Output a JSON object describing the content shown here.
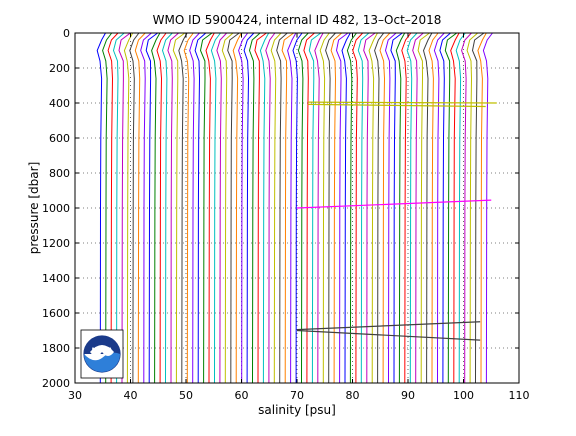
{
  "chart_data": {
    "type": "line",
    "title": "WMO ID 5900424, internal ID 482, 13–Oct–2018",
    "xlabel": "salinity [psu]",
    "ylabel": "pressure [dbar]",
    "xlim": [
      30,
      110
    ],
    "ylim": [
      0,
      2000
    ],
    "y_reversed": true,
    "xticks": [
      30,
      40,
      50,
      60,
      70,
      80,
      90,
      100,
      110
    ],
    "yticks": [
      0,
      200,
      400,
      600,
      800,
      1000,
      1200,
      1400,
      1600,
      1800,
      2000
    ],
    "grid": true,
    "grid_style": "dotted",
    "profile_note": "many offset salinity profiles; each successive profile shifted by about 1 psu",
    "profile_offset_start": 34.6,
    "profile_offset_step": 0.98,
    "profile_count": 72,
    "profile_pressure_max": 2000,
    "profile_colors": [
      "#0000ff",
      "#008000",
      "#ff0000",
      "#00bfbf",
      "#bf00bf",
      "#bfbf00",
      "#404040",
      "#ff8000",
      "#8000ff"
    ],
    "highlight_segments": [
      {
        "color": "#bfbf00",
        "x": [
          72,
          106
        ],
        "y": [
          395,
          400
        ]
      },
      {
        "color": "#bfbf00",
        "x": [
          72,
          104
        ],
        "y": [
          408,
          420
        ]
      },
      {
        "color": "#ff00ff",
        "x": [
          70,
          105
        ],
        "y": [
          1000,
          955
        ]
      },
      {
        "color": "#404040",
        "x": [
          70,
          103
        ],
        "y": [
          1695,
          1650
        ]
      },
      {
        "color": "#404040",
        "x": [
          70,
          103
        ],
        "y": [
          1700,
          1755
        ]
      }
    ],
    "logo": {
      "text": "NOAA",
      "colors": [
        "#1a3a8a",
        "#2e7fd9",
        "#ffffff"
      ]
    }
  }
}
